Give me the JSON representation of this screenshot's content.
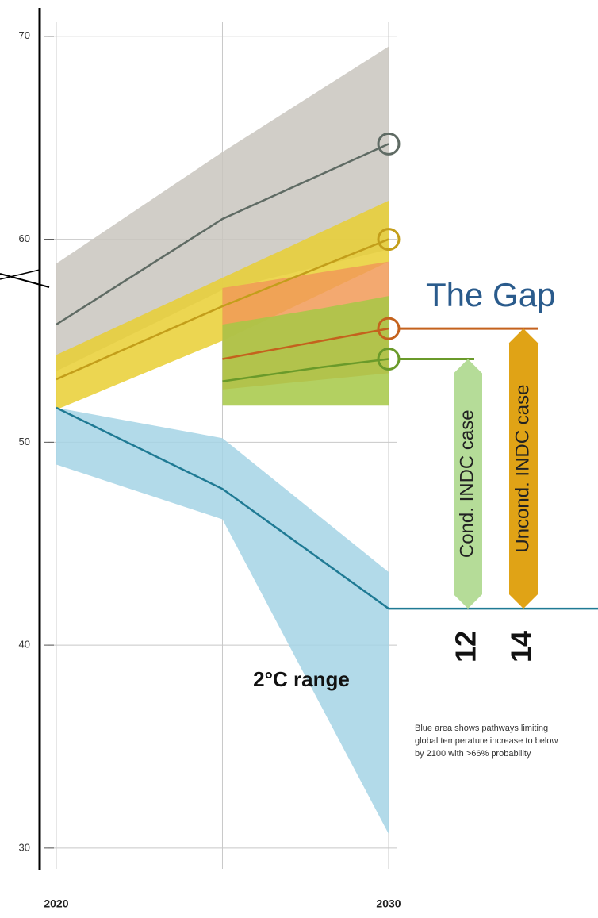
{
  "chart_data": {
    "type": "line",
    "xlim": [
      2019.5,
      2036.3
    ],
    "ylim": [
      28.9,
      71.4
    ],
    "xticks": [
      2020,
      2030
    ],
    "xgrid": [
      2020,
      2025,
      2030
    ],
    "yticks": [
      30,
      40,
      50,
      60,
      70
    ],
    "grid": true,
    "series": [
      {
        "color": "#5f6b64",
        "band_color": "#c9c6be",
        "x": [
          2020,
          2025,
          2030
        ],
        "values": [
          55.8,
          61.0,
          64.7
        ],
        "low": [
          53.5,
          57.5,
          59.5
        ],
        "high": [
          58.8,
          64.3,
          69.5
        ],
        "end_circle": true
      },
      {
        "color": "#c39e1a",
        "band_color": "#e9cf33",
        "x": [
          2020,
          2025,
          2030
        ],
        "values": [
          53.1,
          56.7,
          60.0
        ],
        "low": [
          51.6,
          55.0,
          58.9
        ],
        "high": [
          54.3,
          58.1,
          61.9
        ],
        "end_circle": true
      },
      {
        "color": "#c4621d",
        "band_color": "#f19a57",
        "x": [
          2025,
          2030
        ],
        "values": [
          54.1,
          55.6
        ],
        "low": [
          52.6,
          53.4
        ],
        "high": [
          57.6,
          58.9
        ],
        "end_circle": true
      },
      {
        "color": "#6a9a2a",
        "band_color": "#a6c845",
        "x": [
          2025,
          2028,
          2030
        ],
        "values": [
          53.0,
          53.7,
          54.1
        ],
        "low": [
          51.8,
          51.8,
          51.8
        ],
        "high": [
          55.8,
          56.6,
          57.2
        ],
        "end_circle": true
      },
      {
        "color": "#1f7a94",
        "band_color": "#a4d3e5",
        "x": [
          2020,
          2025,
          2030,
          2036.3
        ],
        "values": [
          51.7,
          47.7,
          41.8,
          41.8
        ],
        "low": [
          48.9,
          46.2,
          30.7,
          null
        ],
        "high": [
          51.7,
          50.2,
          43.6,
          null
        ],
        "end_circle": false
      }
    ],
    "gap_title": "The Gap",
    "gaps": [
      {
        "label": "Cond. INDC case",
        "value": 12,
        "color": "#b5dc98",
        "series": 3
      },
      {
        "label": "Uncond. INDC case",
        "value": 14,
        "color": "#e0a316",
        "series": 2
      }
    ],
    "range_label": "2°C range",
    "note": [
      "Blue area shows pathways limiting",
      "global temperature increase to below",
      "by 2100 with >66% probability"
    ]
  }
}
